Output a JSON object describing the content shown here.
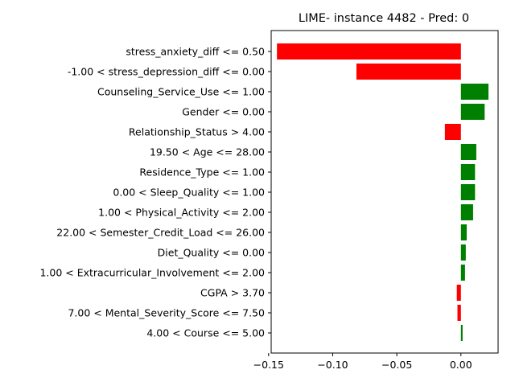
{
  "chart_data": {
    "type": "bar",
    "orientation": "horizontal",
    "title": "LIME- instance 4482 - Pred: 0",
    "xlabel": "",
    "ylabel": "",
    "xlim": [
      -0.148,
      0.029
    ],
    "xticks": [
      -0.15,
      -0.1,
      -0.05,
      0.0
    ],
    "xtick_labels": [
      "−0.15",
      "−0.10",
      "−0.05",
      "0.00"
    ],
    "grid": false,
    "colors": {
      "positive": "#008000",
      "negative": "#ff0000"
    },
    "categories": [
      "stress_anxiety_diff <= 0.50",
      "-1.00 < stress_depression_diff <= 0.00",
      "Counseling_Service_Use <= 1.00",
      "Gender <= 0.00",
      "Relationship_Status > 4.00",
      "19.50 < Age <= 28.00",
      "Residence_Type <= 1.00",
      "0.00 < Sleep_Quality <= 1.00",
      "1.00 < Physical_Activity <= 2.00",
      "22.00 < Semester_Credit_Load <= 26.00",
      "Diet_Quality <= 0.00",
      "1.00 < Extracurricular_Involvement <= 2.00",
      "CGPA > 3.70",
      "7.00 < Mental_Severity_Score <= 7.50",
      "4.00 < Course <= 5.00"
    ],
    "values": [
      -0.1435,
      -0.0815,
      0.0215,
      0.0185,
      -0.0125,
      0.012,
      0.011,
      0.011,
      0.0095,
      0.0045,
      0.0038,
      0.0032,
      -0.0032,
      -0.0027,
      0.0013
    ]
  }
}
